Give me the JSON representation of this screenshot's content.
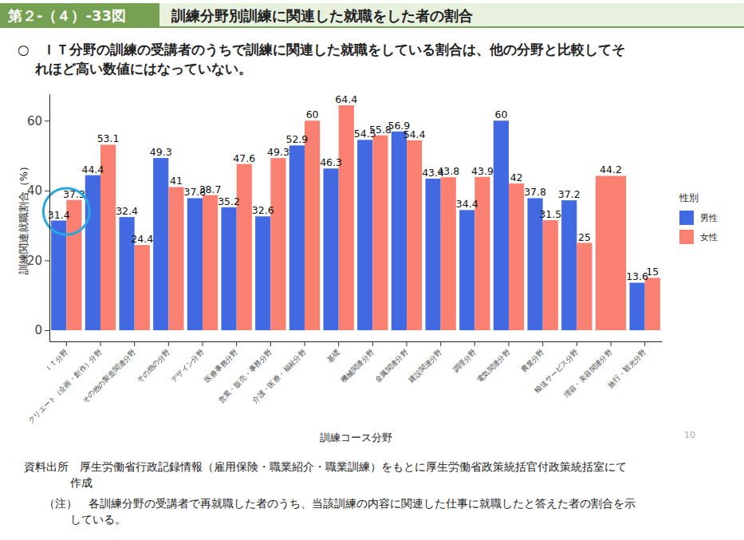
{
  "chart_data": {
    "type": "bar",
    "figure_label": "第２-（４）-33図",
    "title": "訓練分野別訓練に関連した就職をした者の割合",
    "subtitle": [
      "○　ＩＴ分野の訓練の受講者のうちで訓練に関連した就職をしている割合は、他の分野と比較してそ",
      "れほど高い数値にはなっていない。"
    ],
    "x_label": "訓練コース分野",
    "y_label": "訓練関連就職割合（%）",
    "legend_title": "性別",
    "legend": "right",
    "data_labels": true,
    "categories": [
      "ＩＴ分野",
      "クリエート（企画・創作）分野",
      "その他の製造関連分野",
      "その他の分野",
      "デザイン分野",
      "医療事務分野",
      "営業・販売・事務分野",
      "介護・医療・福祉分野",
      "基礎",
      "機械関連分野",
      "金属関連分野",
      "建設関連分野",
      "調理分野",
      "電気関連分野",
      "農業分野",
      "輸送サービス分野",
      "理容・美容関連分野",
      "旅行・観光分野"
    ],
    "series": [
      {
        "name": "男性",
        "color": "#4169e1",
        "values": [
          31.4,
          44.4,
          32.4,
          49.3,
          37.8,
          35.2,
          32.6,
          52.9,
          46.3,
          54.5,
          56.9,
          43.4,
          34.4,
          60,
          37.8,
          37.2,
          null,
          13.6
        ]
      },
      {
        "name": "女性",
        "color": "#fa8072",
        "values": [
          37.3,
          53.1,
          24.4,
          41,
          38.7,
          47.6,
          49.3,
          60,
          64.4,
          55.8,
          54.4,
          43.8,
          43.9,
          42,
          31.5,
          25,
          44.2,
          15
        ]
      }
    ],
    "ylim": [
      -3.2,
      67.6
    ],
    "yticks": [
      0,
      20,
      40,
      60
    ],
    "page_number": "10",
    "source": [
      "資料出所　厚生労働省行政記録情報（雇用保険・職業紹介・職業訓練）をもとに厚生労働省政策統括官付政策統括室にて",
      "作成"
    ],
    "note": [
      "（注）　各訓練分野の受講者で再就職した者のうち、当該訓練の内容に関連した仕事に就職したと答えた者の割合を示",
      "している。"
    ]
  }
}
